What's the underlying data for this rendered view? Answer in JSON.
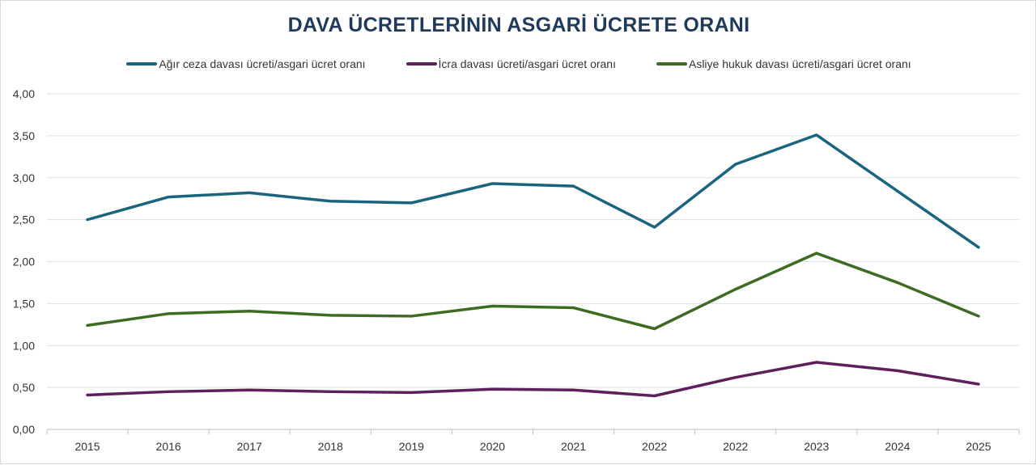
{
  "chart_data": {
    "type": "line",
    "title": "DAVA ÜCRETLERİNİN ASGARİ ÜCRETE ORANI",
    "categories": [
      "2015",
      "2016",
      "2017",
      "2018",
      "2019",
      "2020",
      "2021",
      "2022",
      "2022",
      "2023",
      "2024",
      "2025"
    ],
    "ylim": [
      0,
      4
    ],
    "yticks": [
      "0,00",
      "0,50",
      "1,00",
      "1,50",
      "2,00",
      "2,50",
      "3,00",
      "3,50",
      "4,00"
    ],
    "grid": true,
    "legend_position": "top",
    "series": [
      {
        "name": "Ağır ceza davası ücreti/asgari ücret oranı",
        "color": "#1b6480",
        "values": [
          2.5,
          2.77,
          2.82,
          2.72,
          2.7,
          2.93,
          2.9,
          2.41,
          3.16,
          3.51,
          2.84,
          2.17
        ]
      },
      {
        "name": "İcra davası ücreti/asgari ücret oranı",
        "color": "#5e1f5c",
        "values": [
          0.41,
          0.45,
          0.47,
          0.45,
          0.44,
          0.48,
          0.47,
          0.4,
          0.62,
          0.8,
          0.7,
          0.54
        ]
      },
      {
        "name": "Asliye hukuk davası ücreti/asgari ücret oranı",
        "color": "#3e6b22",
        "values": [
          1.24,
          1.38,
          1.41,
          1.36,
          1.35,
          1.47,
          1.45,
          1.2,
          1.67,
          2.1,
          1.75,
          1.35
        ]
      }
    ]
  }
}
